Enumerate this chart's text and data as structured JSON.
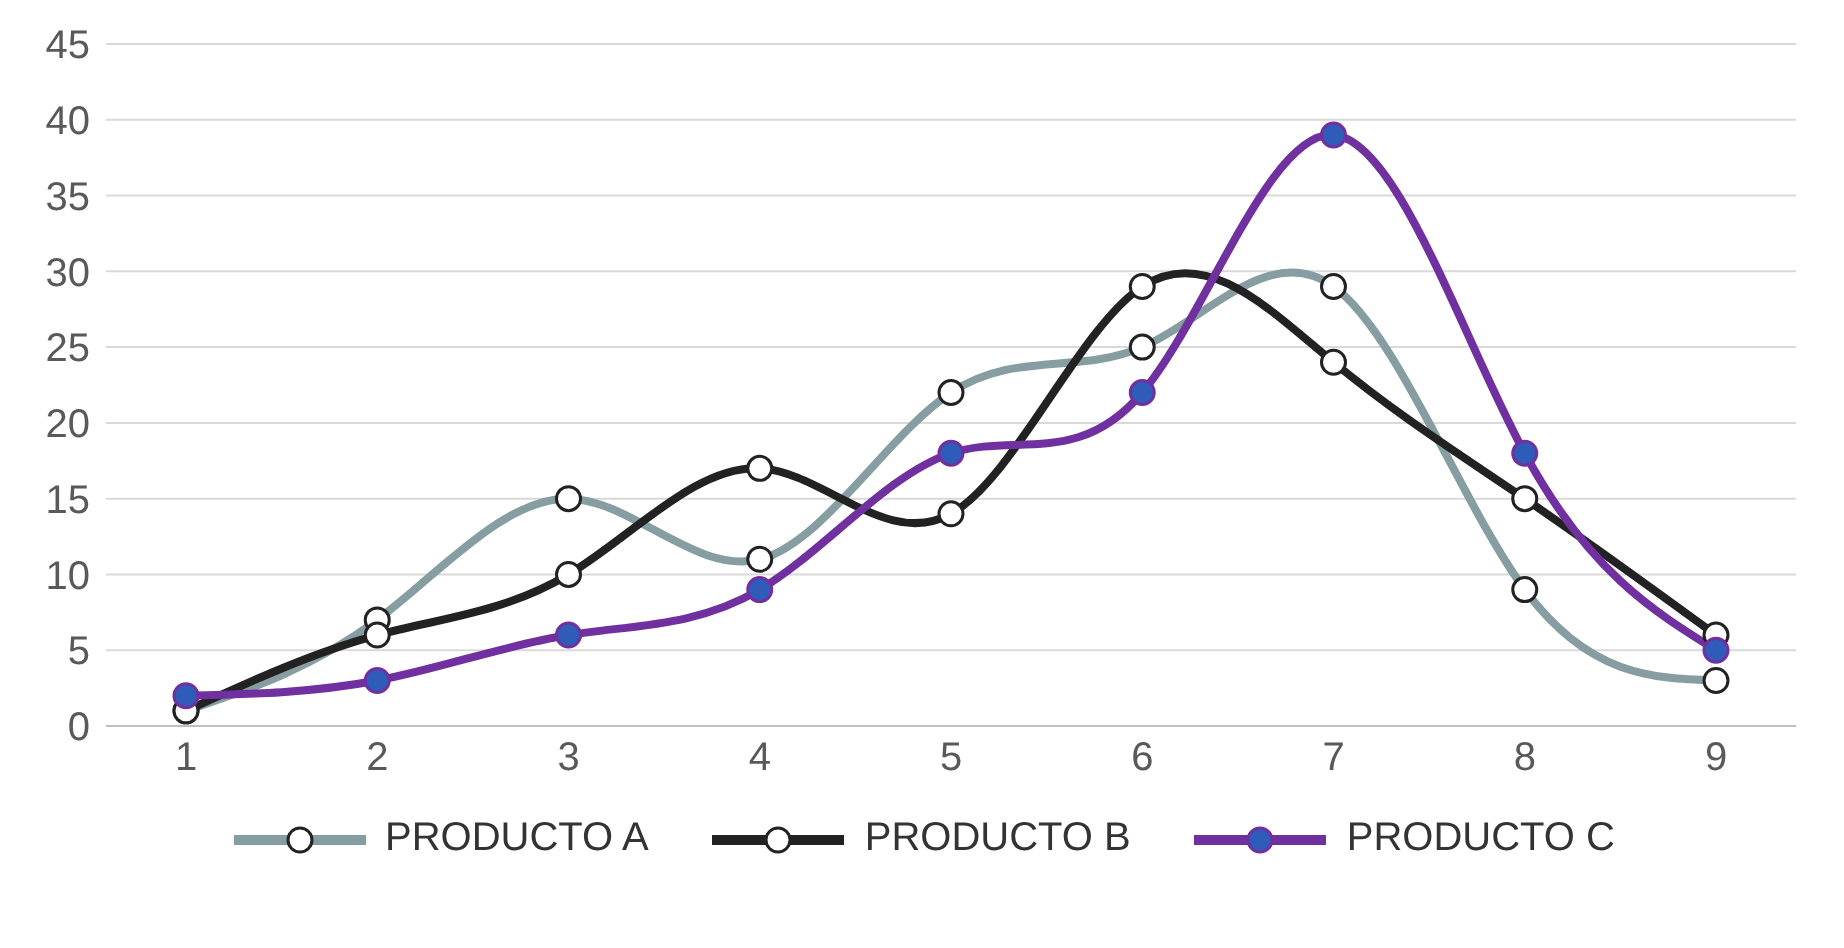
{
  "chart_data": {
    "type": "line",
    "categories": [
      "1",
      "2",
      "3",
      "4",
      "5",
      "6",
      "7",
      "8",
      "9"
    ],
    "series": [
      {
        "name": "PRODUCTO A",
        "color": "#869ea1",
        "values": [
          1,
          7,
          15,
          11,
          22,
          25,
          29,
          9,
          3
        ]
      },
      {
        "name": "PRODUCTO B",
        "color": "#222222",
        "values": [
          1,
          6,
          10,
          17,
          14,
          29,
          24,
          15,
          6
        ]
      },
      {
        "name": "PRODUCTO C",
        "color": "#7030a0",
        "values": [
          2,
          3,
          6,
          9,
          18,
          22,
          39,
          18,
          5
        ]
      }
    ],
    "ylim": [
      0,
      45
    ],
    "yticks": [
      0,
      5,
      10,
      15,
      20,
      25,
      30,
      35,
      40,
      45
    ],
    "grid": "y",
    "legend": "bottom",
    "marker": "circle",
    "line_style": "solid"
  }
}
